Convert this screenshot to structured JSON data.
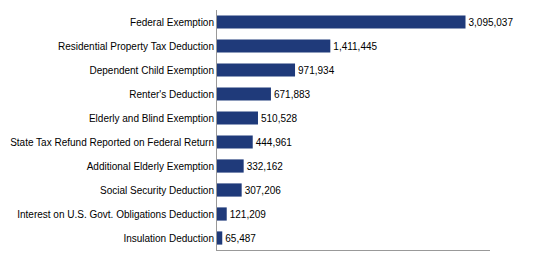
{
  "chart_data": {
    "type": "bar",
    "orientation": "horizontal",
    "categories": [
      "Insulation Deduction",
      "Interest on U.S. Govt. Obligations Deduction",
      "Social Security Deduction",
      "Additional Elderly Exemption",
      "State Tax Refund Reported on Federal Return",
      "Elderly and Blind Exemption",
      "Renter's Deduction",
      "Dependent Child Exemption",
      "Residential Property Tax Deduction",
      "Federal Exemption"
    ],
    "values": [
      65487,
      121209,
      307206,
      332162,
      444961,
      510528,
      671883,
      971934,
      1411445,
      3095037
    ],
    "value_labels": [
      "65,487",
      "121,209",
      "307,206",
      "332,162",
      "444,961",
      "510,528",
      "671,883",
      "971,934",
      "1,411,445",
      "3,095,037"
    ],
    "data_labels": true,
    "color": "#1F3A7A",
    "xlim": [
      0,
      3400000
    ],
    "tick_labels": "y",
    "grid": false
  }
}
